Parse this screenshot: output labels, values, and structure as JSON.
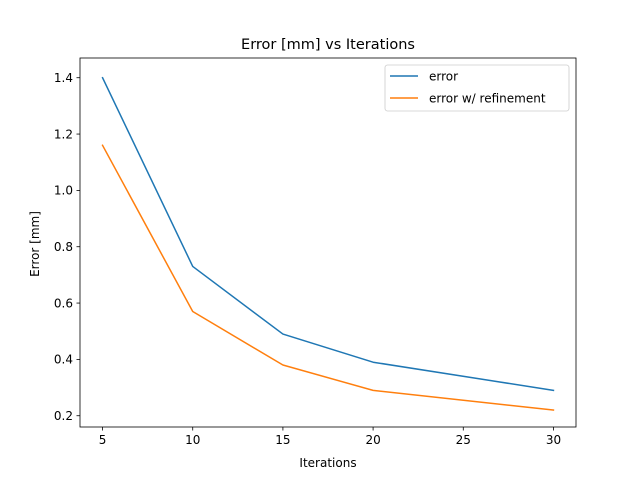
{
  "chart_data": {
    "type": "line",
    "title": "Error [mm] vs Iterations",
    "xlabel": "Iterations",
    "ylabel": "Error [mm]",
    "x": [
      5,
      10,
      15,
      20,
      30
    ],
    "series": [
      {
        "name": "error",
        "values": [
          1.4,
          0.73,
          0.49,
          0.39,
          0.29
        ],
        "color": "#1f77b4"
      },
      {
        "name": "error w/ refinement",
        "values": [
          1.16,
          0.57,
          0.38,
          0.29,
          0.22
        ],
        "color": "#ff7f0e"
      }
    ],
    "xlim": [
      3.75,
      31.25
    ],
    "ylim": [
      0.16,
      1.47
    ],
    "xticks": [
      5,
      10,
      15,
      20,
      25,
      30
    ],
    "xtick_labels": [
      "5",
      "10",
      "15",
      "20",
      "25",
      "30"
    ],
    "yticks": [
      0.2,
      0.4,
      0.6,
      0.8,
      1.0,
      1.2,
      1.4
    ],
    "ytick_labels": [
      "0.2",
      "0.4",
      "0.6",
      "0.8",
      "1.0",
      "1.2",
      "1.4"
    ],
    "grid": false,
    "legend_position": "top-right"
  }
}
